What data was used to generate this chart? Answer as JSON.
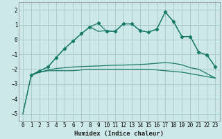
{
  "xlabel": "Humidex (Indice chaleur)",
  "background_color": "#cce8e8",
  "grid_color": "#aacccc",
  "line_color": "#1a7a6a",
  "xlim": [
    -0.5,
    23.5
  ],
  "ylim": [
    -5.5,
    2.5
  ],
  "yticks": [
    -5,
    -4,
    -3,
    -2,
    -1,
    0,
    1,
    2
  ],
  "xticks": [
    0,
    1,
    2,
    3,
    4,
    5,
    6,
    7,
    8,
    9,
    10,
    11,
    12,
    13,
    14,
    15,
    16,
    17,
    18,
    19,
    20,
    21,
    22,
    23
  ],
  "series": [
    {
      "x": [
        0,
        1,
        2,
        3,
        4,
        5,
        6,
        7,
        8,
        9,
        10,
        11,
        12,
        13,
        14,
        15,
        16,
        17,
        18,
        19,
        20,
        21,
        22,
        23
      ],
      "y": [
        -5.0,
        -2.4,
        -2.2,
        -2.1,
        -2.1,
        -2.1,
        -2.1,
        -2.05,
        -2.0,
        -2.0,
        -2.0,
        -2.0,
        -2.0,
        -2.0,
        -2.0,
        -2.0,
        -2.05,
        -2.1,
        -2.15,
        -2.2,
        -2.3,
        -2.4,
        -2.5,
        -2.6
      ],
      "marker": false
    },
    {
      "x": [
        0,
        1,
        2,
        3,
        4,
        5,
        6,
        7,
        8,
        9,
        10,
        11,
        12,
        13,
        14,
        15,
        16,
        17,
        18,
        19,
        20,
        21,
        22,
        23
      ],
      "y": [
        -5.0,
        -2.4,
        -2.2,
        -2.05,
        -1.95,
        -1.9,
        -1.85,
        -1.82,
        -1.8,
        -1.78,
        -1.75,
        -1.73,
        -1.72,
        -1.7,
        -1.68,
        -1.65,
        -1.6,
        -1.55,
        -1.6,
        -1.7,
        -1.9,
        -2.0,
        -2.3,
        -2.6
      ],
      "marker": false
    },
    {
      "x": [
        1,
        2,
        3,
        4,
        5,
        6,
        7,
        8,
        9,
        10,
        11,
        12,
        13,
        14,
        15,
        16,
        17,
        18,
        19,
        20,
        21,
        22,
        23
      ],
      "y": [
        -2.4,
        -2.1,
        -1.85,
        -1.2,
        -0.6,
        -0.1,
        0.4,
        0.85,
        1.1,
        0.55,
        0.55,
        1.05,
        1.05,
        0.6,
        0.5,
        0.7,
        1.85,
        1.2,
        0.2,
        0.2,
        -0.85,
        -1.05,
        -1.85
      ],
      "marker": true
    },
    {
      "x": [
        1,
        2,
        3,
        4,
        5,
        6,
        7,
        8,
        9,
        10,
        11,
        12,
        13,
        14,
        15,
        16,
        17,
        18,
        19,
        20,
        21,
        22,
        23
      ],
      "y": [
        -2.4,
        -2.1,
        -1.85,
        -1.2,
        -0.6,
        -0.1,
        0.4,
        0.85,
        0.55,
        0.6,
        0.55,
        1.05,
        1.05,
        0.6,
        0.5,
        0.7,
        1.85,
        1.2,
        0.2,
        0.2,
        -0.85,
        -1.05,
        -1.85
      ],
      "marker": false
    }
  ]
}
